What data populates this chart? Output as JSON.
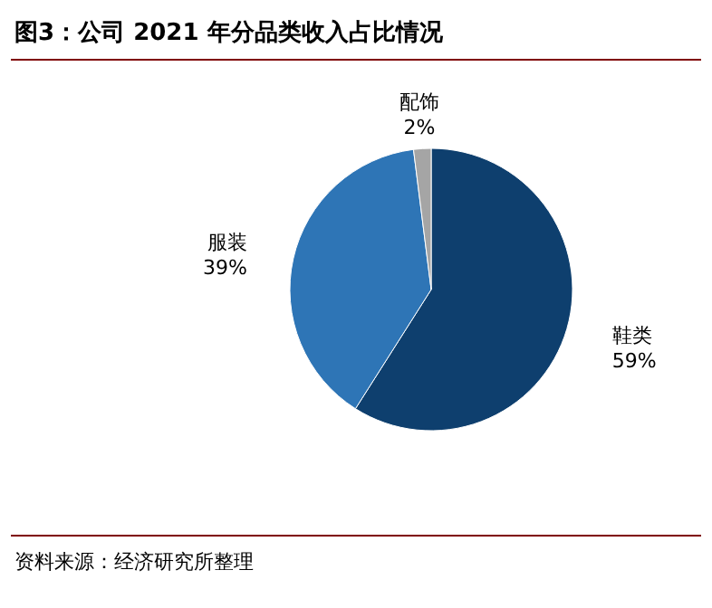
{
  "chart_data": {
    "type": "pie",
    "title": "图3：公司 2021 年分品类收入占比情况",
    "categories": [
      "鞋类",
      "服装",
      "配饰"
    ],
    "values": [
      59,
      39,
      2
    ],
    "colors": [
      "#0e3f6e",
      "#2e75b6",
      "#a5a5a5"
    ],
    "value_labels": [
      "59%",
      "39%",
      "2%"
    ],
    "annotations": [
      "资料来源：经济研究所整理"
    ]
  }
}
